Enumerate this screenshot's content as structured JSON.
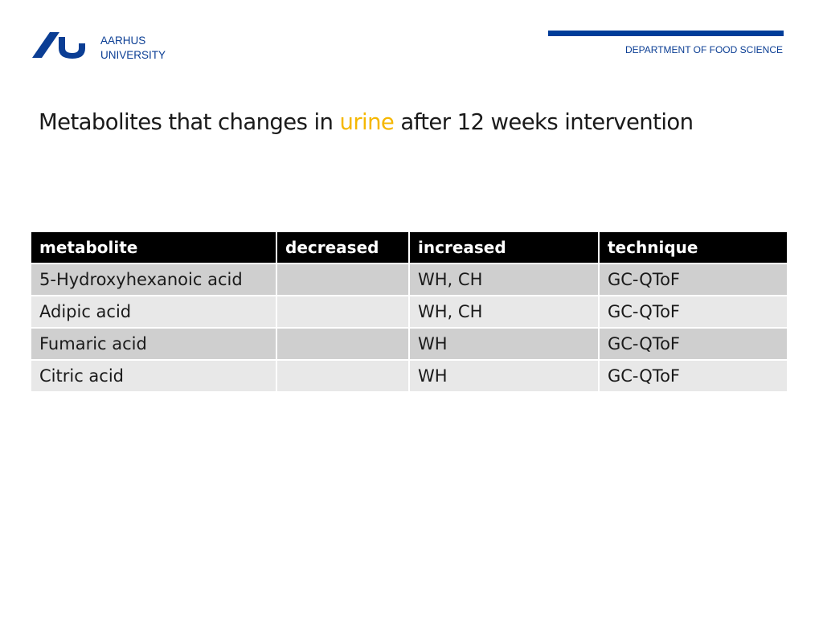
{
  "header": {
    "university_line1": "AARHUS",
    "university_line2": "UNIVERSITY",
    "department": "DEPARTMENT OF FOOD SCIENCE"
  },
  "title": {
    "before": "Metabolites that changes in ",
    "highlight": "urine",
    "after": " after 12 weeks intervention"
  },
  "table": {
    "headers": [
      "metabolite",
      "decreased",
      "increased",
      "technique"
    ],
    "rows": [
      [
        "5-Hydroxyhexanoic acid",
        "",
        "WH, CH",
        "GC-QToF"
      ],
      [
        "Adipic acid",
        "",
        "WH, CH",
        "GC-QToF"
      ],
      [
        "Fumaric acid",
        "",
        "WH",
        "GC-QToF"
      ],
      [
        "Citric acid",
        "",
        "WH",
        "GC-QToF"
      ]
    ]
  },
  "colors": {
    "brand_blue": "#0b3e94",
    "highlight": "#f5b700",
    "header_bg": "#000000"
  }
}
